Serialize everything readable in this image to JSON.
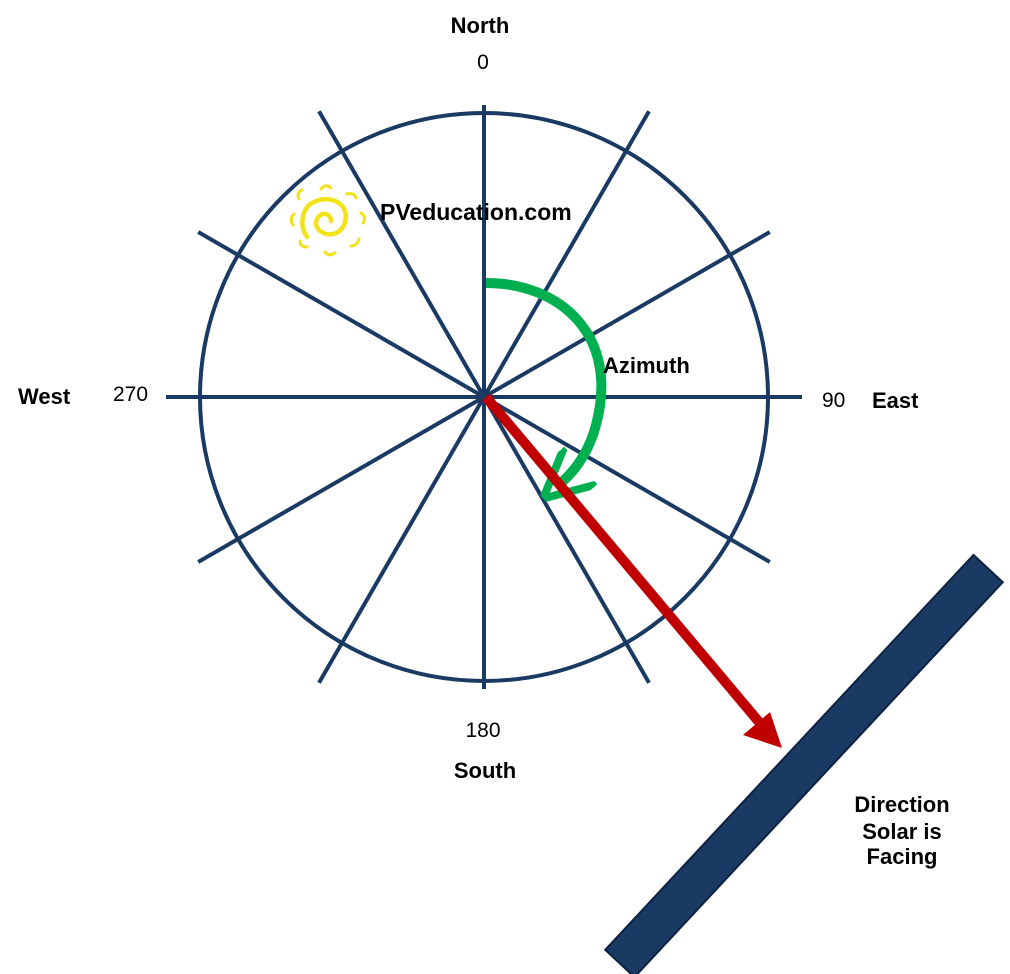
{
  "compass": {
    "north": "North",
    "east": "East",
    "south": "South",
    "west": "West",
    "deg_north": "0",
    "deg_east": "90",
    "deg_south": "180",
    "deg_west": "270",
    "spoke_count": 12
  },
  "brand": "PVeducation.com",
  "azimuth": {
    "label": "Azimuth",
    "direction_deg": 143
  },
  "panel": {
    "caption_line1": "Direction",
    "caption_line2": "Solar is",
    "caption_line3": "Facing"
  },
  "colors": {
    "navy": "#1b3a63",
    "green": "#00b050",
    "red": "#c00000",
    "sun": "#f2e21a"
  }
}
